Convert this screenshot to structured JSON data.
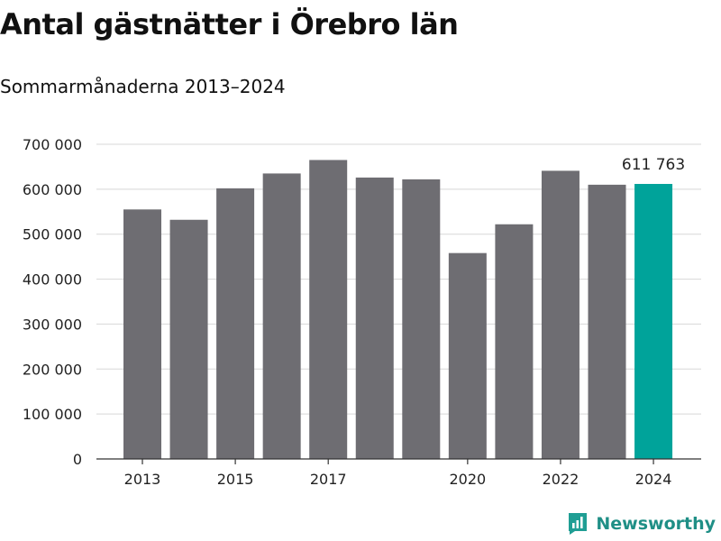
{
  "header": {
    "title": "Antal gästnätter i Örebro län",
    "subtitle": "Sommarmånaderna 2013–2024"
  },
  "brand": {
    "name": "Newsworthy",
    "icon": "newsworthy-chart-logo-icon",
    "color": "#1f9e94"
  },
  "colors": {
    "bar": "#6e6d72",
    "highlight": "#00a39a",
    "grid": "#d8d8d8",
    "axis": "#333333"
  },
  "chart_data": {
    "type": "bar",
    "categories": [
      "2013",
      "2014",
      "2015",
      "2016",
      "2017",
      "2018",
      "2019",
      "2020",
      "2021",
      "2022",
      "2023",
      "2024"
    ],
    "values": [
      555000,
      532000,
      602000,
      635000,
      665000,
      626000,
      622000,
      458000,
      522000,
      641000,
      610000,
      611763
    ],
    "highlight_index": 11,
    "annotation": "611 763",
    "x_tick_labels": [
      "2013",
      "",
      "2015",
      "",
      "2017",
      "",
      "",
      "2020",
      "",
      "2022",
      "",
      "2024"
    ],
    "y_ticks": [
      0,
      100000,
      200000,
      300000,
      400000,
      500000,
      600000,
      700000
    ],
    "y_tick_labels": [
      "0",
      "100 000",
      "200 000",
      "300 000",
      "400 000",
      "500 000",
      "600 000",
      "700 000"
    ],
    "ylim": [
      0,
      700000
    ],
    "grid": true,
    "legend": "none"
  }
}
